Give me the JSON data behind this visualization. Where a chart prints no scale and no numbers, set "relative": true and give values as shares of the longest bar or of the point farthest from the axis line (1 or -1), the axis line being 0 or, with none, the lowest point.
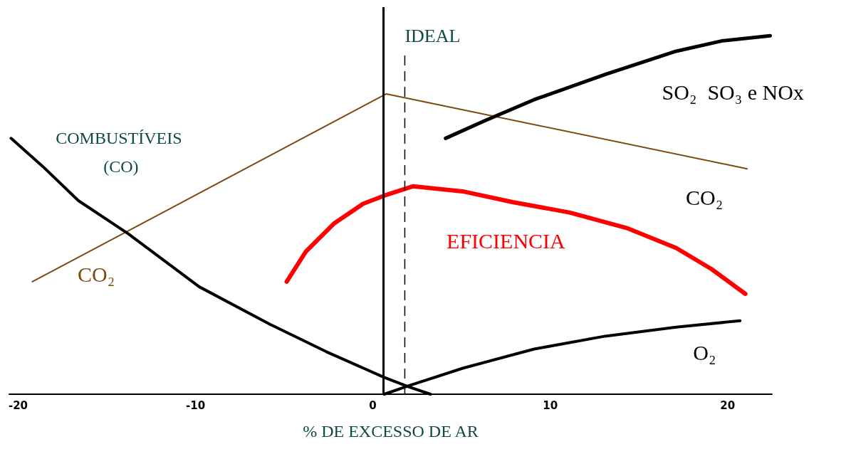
{
  "chart_data": {
    "type": "line",
    "relative": true,
    "xlabel": "% DE EXCESSO DE AR",
    "xlim": [
      -20.5,
      22.5
    ],
    "xticks": [
      -20,
      -10,
      0,
      10,
      20
    ],
    "grid": false,
    "marker": "none",
    "line_style": "solid",
    "series": [
      {
        "name": "CO₂",
        "color": "#7b4a12",
        "x": [
          -19.2,
          0.76,
          21.1
        ],
        "values": [
          0.314,
          0.838,
          0.629
        ]
      },
      {
        "name": "COMBUSTÍVEIS (CO)",
        "color": "#000000",
        "x": [
          -20.4,
          -18.6,
          -16.6,
          -13.8,
          -9.8,
          -5.8,
          -2.6,
          0.64,
          2.05,
          3.25
        ],
        "values": [
          0.714,
          0.635,
          0.54,
          0.448,
          0.3,
          0.195,
          0.118,
          0.047,
          0.02,
          0
        ]
      },
      {
        "name": "O₂",
        "color": "#000000",
        "x": [
          0.64,
          2.05,
          5.1,
          9.1,
          13.1,
          17.1,
          20.7
        ],
        "values": [
          0,
          0.024,
          0.073,
          0.126,
          0.162,
          0.187,
          0.205
        ]
      },
      {
        "name": "SO₂  SO₃ e NOx",
        "color": "#000000",
        "x": [
          4.1,
          6.3,
          9.1,
          13.1,
          17.1,
          19.7,
          22.4
        ],
        "values": [
          0.714,
          0.763,
          0.822,
          0.892,
          0.957,
          0.986,
          1
        ]
      },
      {
        "name": "EFICIENCIA",
        "color": "#ff0000",
        "x": [
          -4.86,
          -3.78,
          -2.17,
          -0.56,
          0.64,
          2.25,
          5.06,
          7.87,
          11.08,
          14.3,
          17.1,
          19.1,
          21
        ],
        "values": [
          0.314,
          0.398,
          0.477,
          0.531,
          0.554,
          0.58,
          0.566,
          0.536,
          0.507,
          0.464,
          0.408,
          0.349,
          0.28
        ]
      }
    ],
    "annotations": [
      "CO₂"
    ],
    "ref_lines": [
      {
        "axis": "x",
        "value": 0.6,
        "color": "#000000",
        "line_style": "solid"
      },
      {
        "axis": "x",
        "value": 1.8,
        "label": "IDEAL",
        "color": "#000000",
        "line_style": "dashed"
      }
    ]
  }
}
